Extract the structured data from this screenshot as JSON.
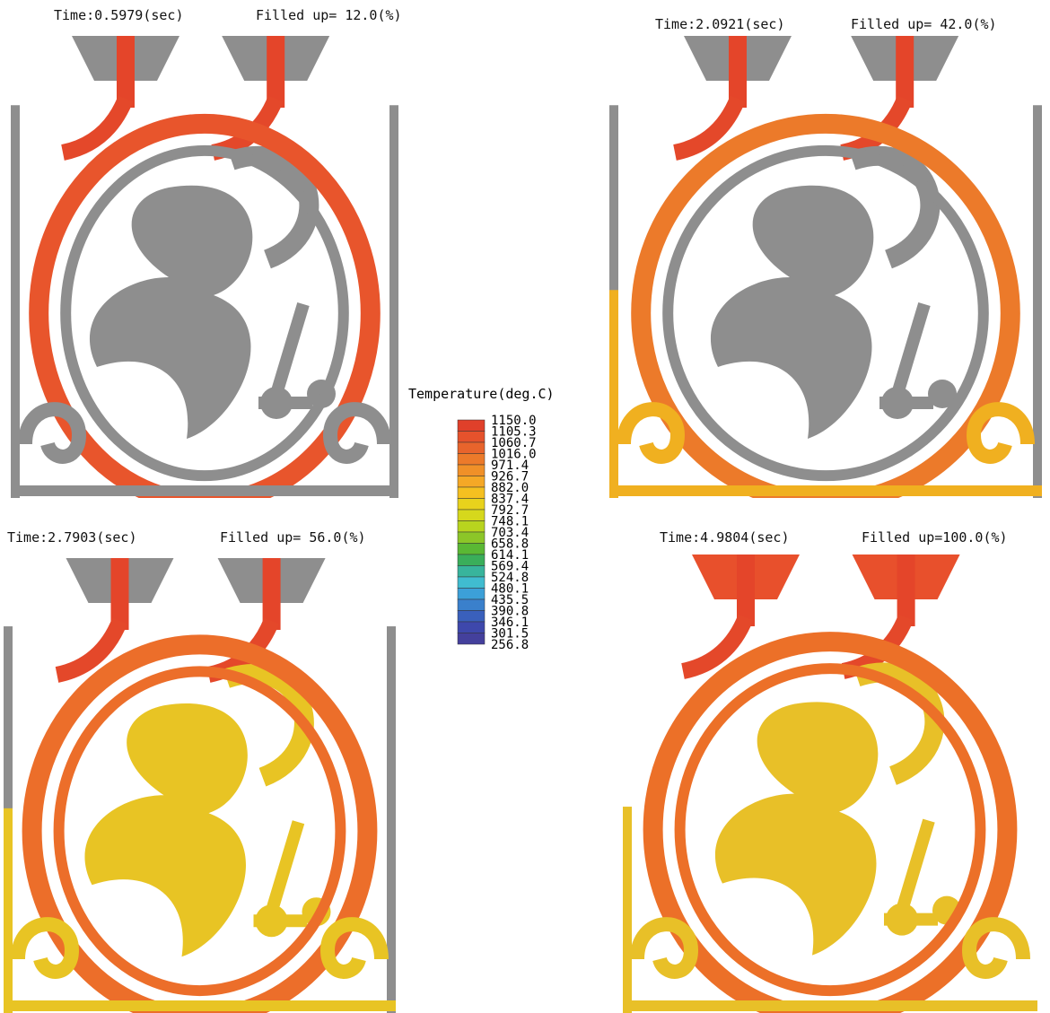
{
  "panels": [
    {
      "time": "Time:0.5979(sec)",
      "filled": "Filled up= 12.0(%)"
    },
    {
      "time": "Time:2.0921(sec)",
      "filled": "Filled up= 42.0(%)"
    },
    {
      "time": "Time:2.7903(sec)",
      "filled": "Filled up= 56.0(%)"
    },
    {
      "time": "Time:4.9804(sec)",
      "filled": "Filled up=100.0(%)"
    }
  ],
  "legend": {
    "title": "Temperature(deg.C)",
    "labels": [
      "1150.0",
      "1105.3",
      "1060.7",
      "1016.0",
      "971.4",
      "926.7",
      "882.0",
      "837.4",
      "792.7",
      "748.1",
      "703.4",
      "658.8",
      "614.1",
      "569.4",
      "524.8",
      "480.1",
      "435.5",
      "390.8",
      "346.1",
      "301.5",
      "256.8"
    ],
    "colors": [
      "#e0402a",
      "#e5522c",
      "#e8642c",
      "#ec7a2a",
      "#f09028",
      "#f5a826",
      "#f5c020",
      "#e8d21c",
      "#d6d81c",
      "#b8d41e",
      "#8cc628",
      "#5ab834",
      "#3aae5a",
      "#38b49c",
      "#40bcd0",
      "#3ca0d8",
      "#3a80cc",
      "#3a60bc",
      "#3e48ac",
      "#44409c"
    ]
  }
}
